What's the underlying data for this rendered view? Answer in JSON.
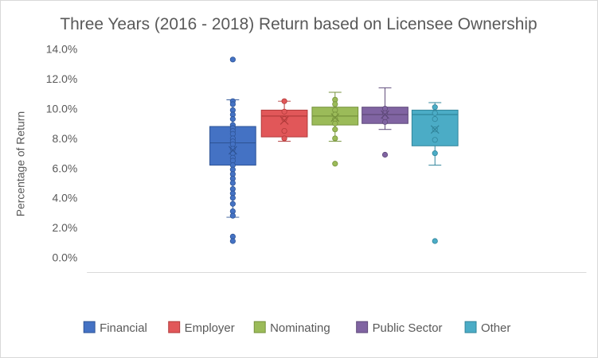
{
  "chart_data": {
    "type": "boxplot",
    "title": "Three Years (2016 - 2018) Return based on Licensee Ownership",
    "ylabel": "Percentage of Return",
    "xlabel": "",
    "ylim": [
      0,
      14
    ],
    "yticks": [
      "0.0%",
      "2.0%",
      "4.0%",
      "6.0%",
      "8.0%",
      "10.0%",
      "12.0%",
      "14.0%"
    ],
    "legend_position": "bottom",
    "grid": false,
    "series": [
      {
        "name": "Financial",
        "color": "#4472c4",
        "stroke": "#2f5597",
        "whisker_low": 2.7,
        "q1": 6.2,
        "median": 7.7,
        "q3": 8.8,
        "whisker_high": 10.6,
        "mean": 7.2,
        "points": [
          13.3,
          10.5,
          10.3,
          9.9,
          9.6,
          9.3,
          8.9,
          8.7,
          8.5,
          8.3,
          8.0,
          7.8,
          7.6,
          7.3,
          7.0,
          6.7,
          6.5,
          6.2,
          5.9,
          5.6,
          5.3,
          5.0,
          4.6,
          4.3,
          4.0,
          3.6,
          3.1,
          2.8,
          1.4,
          1.1
        ]
      },
      {
        "name": "Employer",
        "color": "#e15759",
        "stroke": "#b23b3b",
        "whisker_low": 7.8,
        "q1": 8.1,
        "median": 9.5,
        "q3": 9.9,
        "whisker_high": 10.5,
        "mean": 9.2,
        "points": [
          10.5,
          9.8,
          9.3,
          8.5,
          8.0
        ]
      },
      {
        "name": "Nominating",
        "color": "#9bbb59",
        "stroke": "#76923c",
        "whisker_low": 7.8,
        "q1": 8.9,
        "median": 9.5,
        "q3": 10.1,
        "whisker_high": 11.1,
        "mean": 9.4,
        "points": [
          10.6,
          10.3,
          9.9,
          9.6,
          9.3,
          9.0,
          8.6,
          8.0,
          6.3
        ]
      },
      {
        "name": "Public Sector",
        "color": "#8064a2",
        "stroke": "#5f4a7a",
        "whisker_low": 8.6,
        "q1": 9.0,
        "median": 9.6,
        "q3": 10.1,
        "whisker_high": 11.4,
        "mean": 9.6,
        "points": [
          10.0,
          9.7,
          9.4,
          9.1,
          6.9
        ]
      },
      {
        "name": "Other",
        "color": "#4bacc6",
        "stroke": "#31859b",
        "whisker_low": 6.2,
        "q1": 7.5,
        "median": 9.6,
        "q3": 9.9,
        "whisker_high": 10.4,
        "mean": 8.6,
        "points": [
          10.1,
          9.7,
          9.3,
          8.6,
          7.9,
          7.0,
          1.1
        ]
      }
    ]
  }
}
